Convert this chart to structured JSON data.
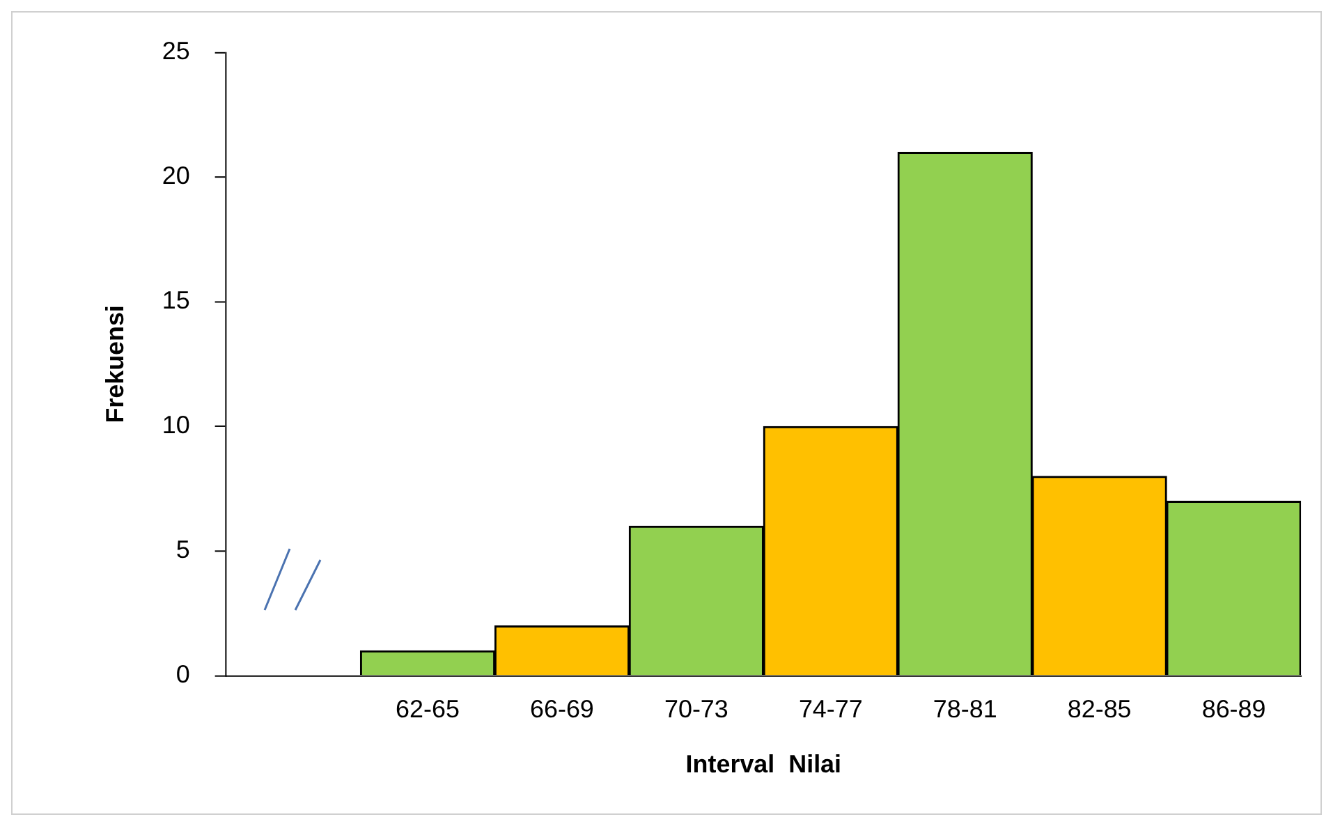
{
  "chart_data": {
    "type": "bar",
    "xlabel": "Interval  Nilai",
    "ylabel": "Frekuensi",
    "categories": [
      null,
      "62-65",
      "66-69",
      "70-73",
      "74-77",
      "78-81",
      "82-85",
      "86-89"
    ],
    "values": [
      null,
      1,
      2,
      6,
      10,
      21,
      8,
      7
    ],
    "colors": [
      "#92d050",
      "#92d050",
      "#ffc000",
      "#92d050",
      "#ffc000",
      "#92d050",
      "#ffc000",
      "#92d050"
    ],
    "ylim": [
      0,
      25
    ],
    "yticks": [
      0,
      5,
      10,
      15,
      20,
      25
    ],
    "grid": false,
    "legend": false
  }
}
